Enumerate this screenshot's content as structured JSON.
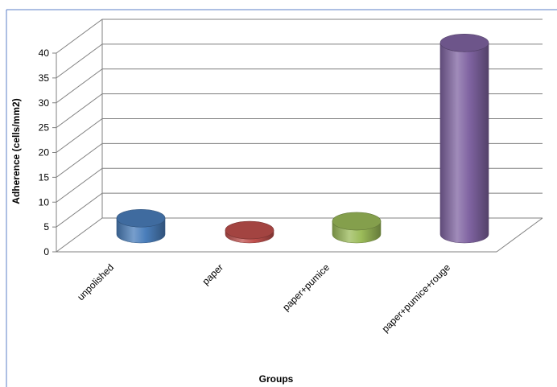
{
  "chart_data": {
    "type": "bar",
    "style": "3d-cylinder",
    "title": "",
    "xlabel": "Groups",
    "ylabel": "Adherence (cells/mm2)",
    "ylim": [
      0,
      40
    ],
    "yticks": [
      0,
      5,
      10,
      15,
      20,
      25,
      30,
      35,
      40
    ],
    "grid": true,
    "legend": "none",
    "categories": [
      "unpolished",
      "paper",
      "paper+pumice",
      "paper+pumice+rouge"
    ],
    "values": [
      3.2,
      0.8,
      2.6,
      38.5
    ],
    "colors": [
      "#4a7ebb",
      "#c0504d",
      "#9bbb59",
      "#8064a2"
    ]
  }
}
